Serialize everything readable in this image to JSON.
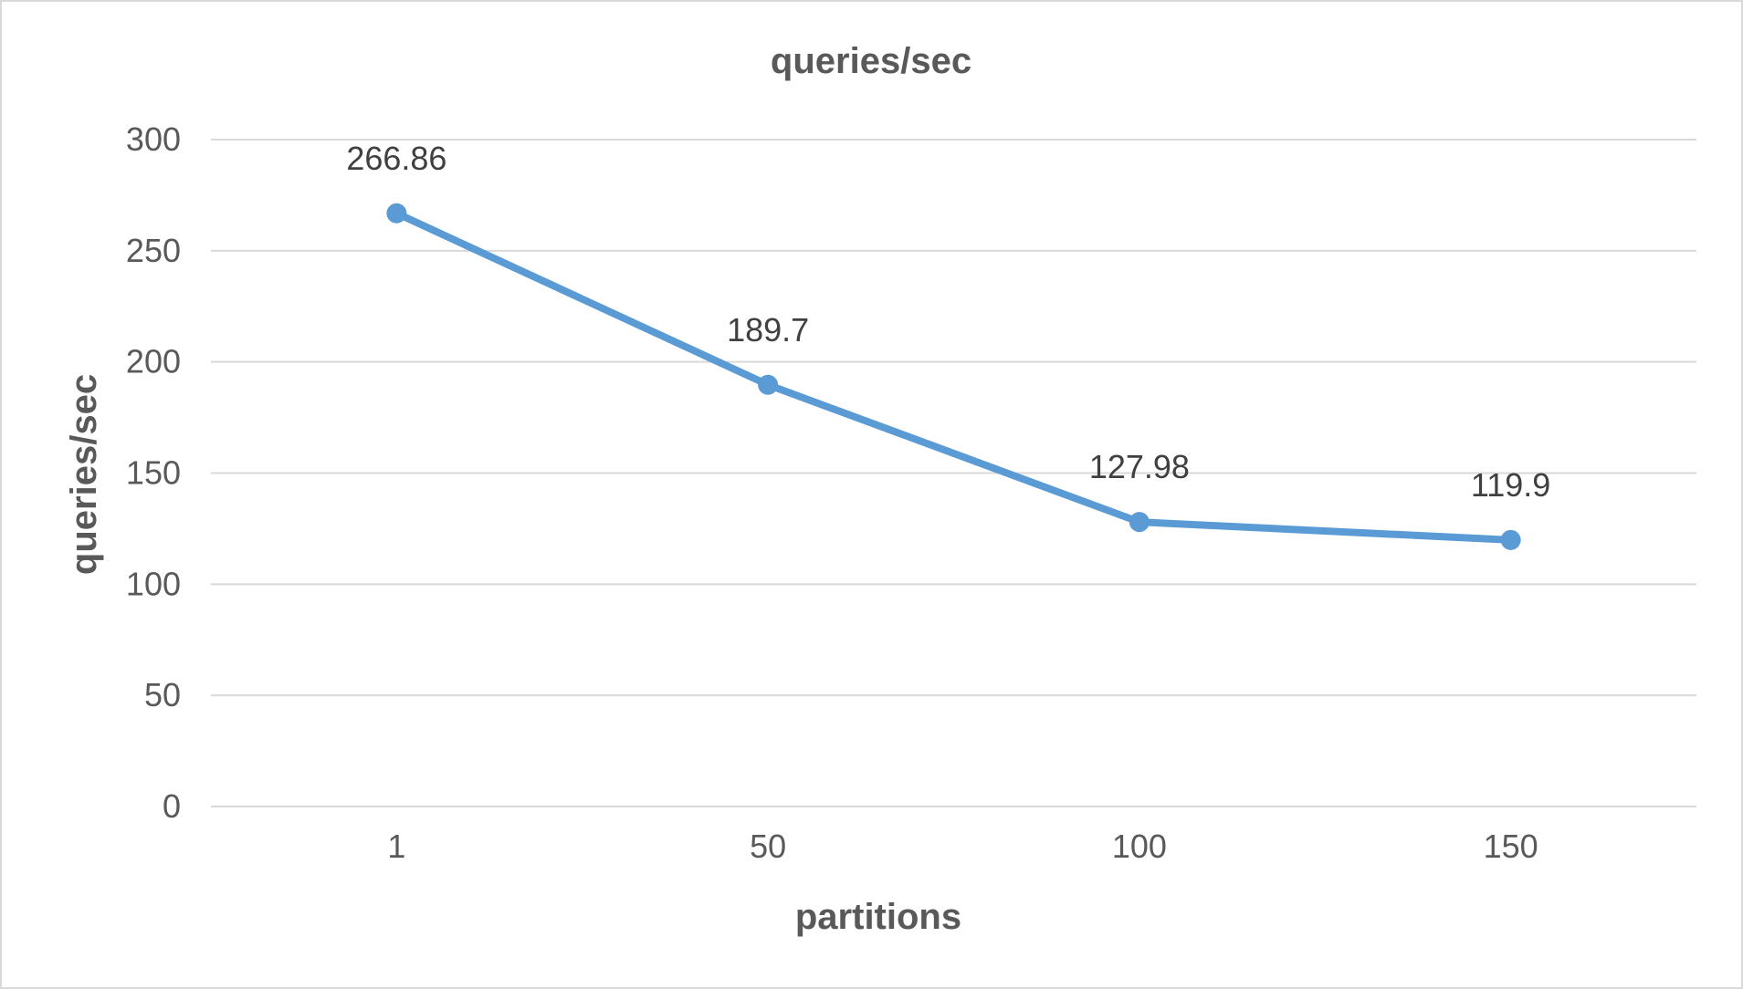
{
  "chart_data": {
    "type": "line",
    "title": "queries/sec",
    "xlabel": "partitions",
    "ylabel": "queries/sec",
    "categories": [
      "1",
      "50",
      "100",
      "150"
    ],
    "series": [
      {
        "values": [
          266.86,
          189.7,
          127.98,
          119.9
        ]
      }
    ],
    "data_labels": [
      "266.86",
      "189.7",
      "127.98",
      "119.9"
    ],
    "ylim": [
      0,
      300
    ],
    "yticks": [
      "0",
      "50",
      "100",
      "150",
      "200",
      "250",
      "300"
    ],
    "grid": true,
    "legend": "none",
    "line_color": "#5b9bd5"
  }
}
